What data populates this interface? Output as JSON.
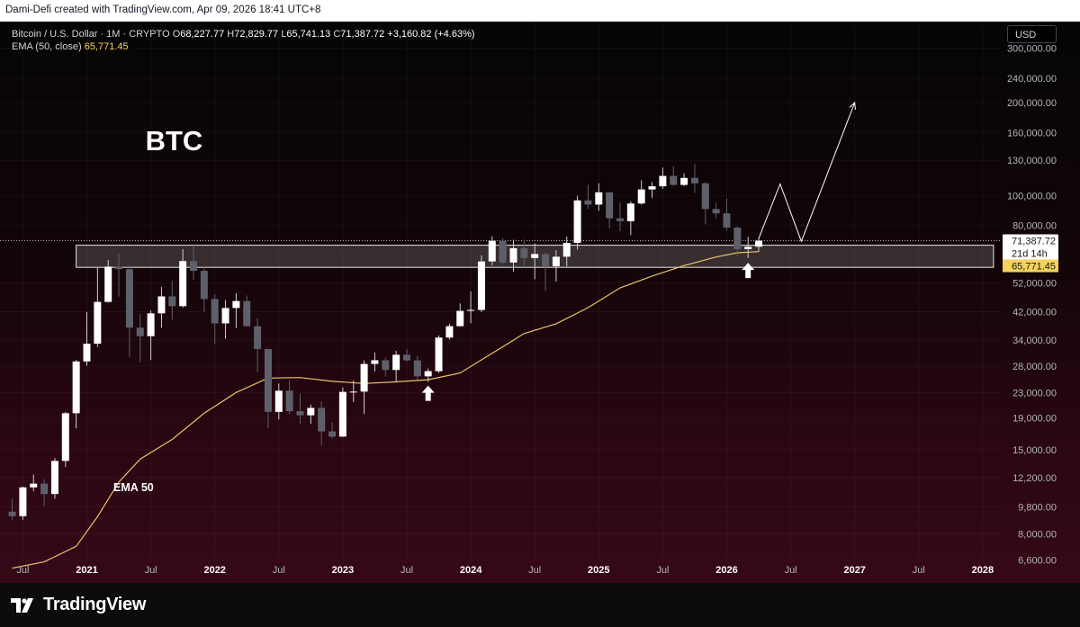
{
  "header": {
    "attribution": "Dami-Defi created with TradingView.com, Apr 09, 2026 18:41 UTC+8"
  },
  "legend": {
    "symbol": "Bitcoin / U.S. Dollar · 1M · CRYPTO",
    "o_label": "O",
    "o_value": "68,227.77",
    "h_label": "H",
    "h_value": "72,829.77",
    "l_label": "L",
    "l_value": "65,741.13",
    "c_label": "C",
    "c_value": "71,387.72",
    "change": "+3,160.82 (+4.63%)",
    "ema_label": "EMA (50, close)",
    "ema_value": "65,771.45"
  },
  "currency_button": "USD",
  "footer": {
    "brand": "TradingView"
  },
  "colors": {
    "candle_up": "#ffffff",
    "candle_down": "#5d606b",
    "ema": "#e9c46a",
    "price_label_bg": "#ffffff",
    "ema_label_bg": "#f5d35e"
  },
  "chart_data": {
    "type": "candlestick",
    "title": "BTC",
    "interval": "1M",
    "y_scale": "log",
    "ylim": [
      5800,
      330000
    ],
    "y_ticks": [
      {
        "value": 300000,
        "label": "300,000.00"
      },
      {
        "value": 240000,
        "label": "240,000.00"
      },
      {
        "value": 200000,
        "label": "200,000.00"
      },
      {
        "value": 160000,
        "label": "160,000.00"
      },
      {
        "value": 130000,
        "label": "130,000.00"
      },
      {
        "value": 100000,
        "label": "100,000.00"
      },
      {
        "value": 80000,
        "label": "80,000.00"
      },
      {
        "value": 52000,
        "label": "52,000.00"
      },
      {
        "value": 42000,
        "label": "42,000.00"
      },
      {
        "value": 34000,
        "label": "34,000.00"
      },
      {
        "value": 28000,
        "label": "28,000.00"
      },
      {
        "value": 23000,
        "label": "23,000.00"
      },
      {
        "value": 19000,
        "label": "19,000.00"
      },
      {
        "value": 15000,
        "label": "15,000.00"
      },
      {
        "value": 12200,
        "label": "12,200.00"
      },
      {
        "value": 9800,
        "label": "9,800.00"
      },
      {
        "value": 8000,
        "label": "8,000.00"
      },
      {
        "value": 6600,
        "label": "6,600.00"
      }
    ],
    "x_ticks": [
      {
        "date": "2020-07",
        "label": "Jul",
        "bold": false
      },
      {
        "date": "2021-01",
        "label": "2021",
        "bold": true
      },
      {
        "date": "2021-07",
        "label": "Jul",
        "bold": false
      },
      {
        "date": "2022-01",
        "label": "2022",
        "bold": true
      },
      {
        "date": "2022-07",
        "label": "Jul",
        "bold": false
      },
      {
        "date": "2023-01",
        "label": "2023",
        "bold": true
      },
      {
        "date": "2023-07",
        "label": "Jul",
        "bold": false
      },
      {
        "date": "2024-01",
        "label": "2024",
        "bold": true
      },
      {
        "date": "2024-07",
        "label": "Jul",
        "bold": false
      },
      {
        "date": "2025-01",
        "label": "2025",
        "bold": true
      },
      {
        "date": "2025-07",
        "label": "Jul",
        "bold": false
      },
      {
        "date": "2026-01",
        "label": "2026",
        "bold": true
      },
      {
        "date": "2026-07",
        "label": "Jul",
        "bold": false
      },
      {
        "date": "2027-01",
        "label": "2027",
        "bold": true
      },
      {
        "date": "2027-07",
        "label": "Jul",
        "bold": false
      },
      {
        "date": "2028-01",
        "label": "2028",
        "bold": true
      }
    ],
    "candles": [
      {
        "d": "2020-06",
        "o": 9450,
        "h": 10400,
        "l": 8900,
        "c": 9140
      },
      {
        "d": "2020-07",
        "o": 9140,
        "h": 11400,
        "l": 8900,
        "c": 11330
      },
      {
        "d": "2020-08",
        "o": 11330,
        "h": 12470,
        "l": 11000,
        "c": 11650
      },
      {
        "d": "2020-09",
        "o": 11650,
        "h": 12050,
        "l": 9850,
        "c": 10780
      },
      {
        "d": "2020-10",
        "o": 10780,
        "h": 14100,
        "l": 10400,
        "c": 13800
      },
      {
        "d": "2020-11",
        "o": 13800,
        "h": 19900,
        "l": 13200,
        "c": 19700
      },
      {
        "d": "2020-12",
        "o": 19700,
        "h": 29300,
        "l": 17600,
        "c": 28990
      },
      {
        "d": "2021-01",
        "o": 28990,
        "h": 41900,
        "l": 28100,
        "c": 33100
      },
      {
        "d": "2021-02",
        "o": 33100,
        "h": 58300,
        "l": 32300,
        "c": 45200
      },
      {
        "d": "2021-03",
        "o": 45200,
        "h": 61800,
        "l": 45000,
        "c": 58800
      },
      {
        "d": "2021-04",
        "o": 58800,
        "h": 64800,
        "l": 47000,
        "c": 57700
      },
      {
        "d": "2021-05",
        "o": 57700,
        "h": 59500,
        "l": 30000,
        "c": 37300
      },
      {
        "d": "2021-06",
        "o": 37300,
        "h": 41300,
        "l": 28800,
        "c": 35000
      },
      {
        "d": "2021-07",
        "o": 35000,
        "h": 42400,
        "l": 29300,
        "c": 41500
      },
      {
        "d": "2021-08",
        "o": 41500,
        "h": 50500,
        "l": 37300,
        "c": 47100
      },
      {
        "d": "2021-09",
        "o": 47100,
        "h": 52900,
        "l": 39600,
        "c": 43800
      },
      {
        "d": "2021-10",
        "o": 43800,
        "h": 67000,
        "l": 43300,
        "c": 61300
      },
      {
        "d": "2021-11",
        "o": 61300,
        "h": 69000,
        "l": 53300,
        "c": 57000
      },
      {
        "d": "2021-12",
        "o": 57000,
        "h": 59100,
        "l": 42000,
        "c": 46200
      },
      {
        "d": "2022-01",
        "o": 46200,
        "h": 47900,
        "l": 33000,
        "c": 38500
      },
      {
        "d": "2022-02",
        "o": 38500,
        "h": 45800,
        "l": 34300,
        "c": 43200
      },
      {
        "d": "2022-03",
        "o": 43200,
        "h": 48200,
        "l": 37200,
        "c": 45500
      },
      {
        "d": "2022-04",
        "o": 45500,
        "h": 47400,
        "l": 37700,
        "c": 37700
      },
      {
        "d": "2022-05",
        "o": 37700,
        "h": 40000,
        "l": 26700,
        "c": 31800
      },
      {
        "d": "2022-06",
        "o": 31800,
        "h": 31900,
        "l": 17600,
        "c": 19900
      },
      {
        "d": "2022-07",
        "o": 19900,
        "h": 24600,
        "l": 18800,
        "c": 23300
      },
      {
        "d": "2022-08",
        "o": 23300,
        "h": 25200,
        "l": 19600,
        "c": 20000
      },
      {
        "d": "2022-09",
        "o": 20000,
        "h": 22800,
        "l": 18200,
        "c": 19400
      },
      {
        "d": "2022-10",
        "o": 19400,
        "h": 21000,
        "l": 18200,
        "c": 20500
      },
      {
        "d": "2022-11",
        "o": 20500,
        "h": 21500,
        "l": 15500,
        "c": 17200
      },
      {
        "d": "2022-12",
        "o": 17200,
        "h": 18400,
        "l": 16300,
        "c": 16550
      },
      {
        "d": "2023-01",
        "o": 16550,
        "h": 23900,
        "l": 16500,
        "c": 23100
      },
      {
        "d": "2023-02",
        "o": 23100,
        "h": 25200,
        "l": 21400,
        "c": 23150
      },
      {
        "d": "2023-03",
        "o": 23150,
        "h": 29200,
        "l": 19600,
        "c": 28450
      },
      {
        "d": "2023-04",
        "o": 28450,
        "h": 31000,
        "l": 26900,
        "c": 29250
      },
      {
        "d": "2023-05",
        "o": 29250,
        "h": 29800,
        "l": 25900,
        "c": 27200
      },
      {
        "d": "2023-06",
        "o": 27200,
        "h": 31400,
        "l": 24800,
        "c": 30470
      },
      {
        "d": "2023-07",
        "o": 30470,
        "h": 31800,
        "l": 28900,
        "c": 29230
      },
      {
        "d": "2023-08",
        "o": 29230,
        "h": 30200,
        "l": 25200,
        "c": 25940
      },
      {
        "d": "2023-09",
        "o": 25940,
        "h": 27500,
        "l": 24900,
        "c": 26960
      },
      {
        "d": "2023-10",
        "o": 26960,
        "h": 35200,
        "l": 26600,
        "c": 34640
      },
      {
        "d": "2023-11",
        "o": 34640,
        "h": 38400,
        "l": 34100,
        "c": 37720
      },
      {
        "d": "2023-12",
        "o": 37720,
        "h": 44700,
        "l": 37600,
        "c": 42280
      },
      {
        "d": "2024-01",
        "o": 42280,
        "h": 48900,
        "l": 38500,
        "c": 42580
      },
      {
        "d": "2024-02",
        "o": 42580,
        "h": 64000,
        "l": 41900,
        "c": 61130
      },
      {
        "d": "2024-03",
        "o": 61130,
        "h": 73800,
        "l": 59300,
        "c": 71330
      },
      {
        "d": "2024-04",
        "o": 71330,
        "h": 72800,
        "l": 59600,
        "c": 60640
      },
      {
        "d": "2024-05",
        "o": 60640,
        "h": 71900,
        "l": 56600,
        "c": 67490
      },
      {
        "d": "2024-06",
        "o": 67490,
        "h": 71900,
        "l": 58400,
        "c": 62680
      },
      {
        "d": "2024-07",
        "o": 62680,
        "h": 70000,
        "l": 53500,
        "c": 64620
      },
      {
        "d": "2024-08",
        "o": 64620,
        "h": 65100,
        "l": 49100,
        "c": 58970
      },
      {
        "d": "2024-09",
        "o": 58970,
        "h": 66500,
        "l": 52600,
        "c": 63330
      },
      {
        "d": "2024-10",
        "o": 63330,
        "h": 73600,
        "l": 58900,
        "c": 70220
      },
      {
        "d": "2024-11",
        "o": 70220,
        "h": 99800,
        "l": 66800,
        "c": 96400
      },
      {
        "d": "2024-12",
        "o": 96400,
        "h": 108300,
        "l": 90500,
        "c": 93430
      },
      {
        "d": "2025-01",
        "o": 93430,
        "h": 109600,
        "l": 89200,
        "c": 102400
      },
      {
        "d": "2025-02",
        "o": 102400,
        "h": 102800,
        "l": 78200,
        "c": 84350
      },
      {
        "d": "2025-03",
        "o": 84350,
        "h": 95000,
        "l": 76600,
        "c": 82550
      },
      {
        "d": "2025-04",
        "o": 82550,
        "h": 95800,
        "l": 74400,
        "c": 94200
      },
      {
        "d": "2025-05",
        "o": 94200,
        "h": 112000,
        "l": 93400,
        "c": 104600
      },
      {
        "d": "2025-06",
        "o": 104600,
        "h": 110500,
        "l": 98200,
        "c": 107100
      },
      {
        "d": "2025-07",
        "o": 107100,
        "h": 123200,
        "l": 105100,
        "c": 115700
      },
      {
        "d": "2025-08",
        "o": 115700,
        "h": 124500,
        "l": 107300,
        "c": 108200
      },
      {
        "d": "2025-09",
        "o": 108200,
        "h": 117900,
        "l": 107300,
        "c": 114000
      },
      {
        "d": "2025-10",
        "o": 114000,
        "h": 126200,
        "l": 102000,
        "c": 109500
      },
      {
        "d": "2025-11",
        "o": 109500,
        "h": 110600,
        "l": 80600,
        "c": 90400
      },
      {
        "d": "2025-12",
        "o": 90400,
        "h": 94600,
        "l": 84400,
        "c": 87500
      },
      {
        "d": "2026-01",
        "o": 87500,
        "h": 97900,
        "l": 77000,
        "c": 78700
      },
      {
        "d": "2026-02",
        "o": 78700,
        "h": 79500,
        "l": 63500,
        "c": 67000
      },
      {
        "d": "2026-03",
        "o": 67000,
        "h": 73500,
        "l": 62800,
        "c": 68227
      },
      {
        "d": "2026-04",
        "o": 68227.77,
        "h": 72829.77,
        "l": 65741.13,
        "c": 71387.72
      }
    ],
    "ema_series": {
      "name": "EMA 50",
      "points": [
        {
          "d": "2020-06",
          "v": 6200
        },
        {
          "d": "2020-09",
          "v": 6500
        },
        {
          "d": "2020-12",
          "v": 7300
        },
        {
          "d": "2021-02",
          "v": 9100
        },
        {
          "d": "2021-04",
          "v": 11800
        },
        {
          "d": "2021-06",
          "v": 14000
        },
        {
          "d": "2021-09",
          "v": 16200
        },
        {
          "d": "2021-12",
          "v": 19700
        },
        {
          "d": "2022-03",
          "v": 23000
        },
        {
          "d": "2022-06",
          "v": 25600
        },
        {
          "d": "2022-09",
          "v": 25700
        },
        {
          "d": "2022-12",
          "v": 25000
        },
        {
          "d": "2023-03",
          "v": 24600
        },
        {
          "d": "2023-06",
          "v": 24900
        },
        {
          "d": "2023-09",
          "v": 25300
        },
        {
          "d": "2023-12",
          "v": 26600
        },
        {
          "d": "2024-03",
          "v": 30800
        },
        {
          "d": "2024-06",
          "v": 35700
        },
        {
          "d": "2024-09",
          "v": 38400
        },
        {
          "d": "2024-12",
          "v": 43300
        },
        {
          "d": "2025-03",
          "v": 50200
        },
        {
          "d": "2025-06",
          "v": 54800
        },
        {
          "d": "2025-09",
          "v": 59300
        },
        {
          "d": "2025-12",
          "v": 63200
        },
        {
          "d": "2026-02",
          "v": 65200
        },
        {
          "d": "2026-04",
          "v": 65771.45
        }
      ]
    },
    "support_zone": {
      "from": "2020-12",
      "to": "2028-01",
      "low": 58500,
      "high": 69000
    },
    "current_price": {
      "value": 71387.72,
      "label": "71,387.72",
      "countdown": "21d 14h"
    },
    "ema_price_label": {
      "value": 65771.45,
      "label": "65,771.45"
    },
    "projection": [
      {
        "d": "2026-04",
        "v": 72500
      },
      {
        "d": "2026-06",
        "v": 109000
      },
      {
        "d": "2026-08",
        "v": 71000
      },
      {
        "d": "2027-01",
        "v": 200000
      }
    ],
    "markers": [
      {
        "d": "2023-09",
        "v": 22800,
        "kind": "arrow-up"
      },
      {
        "d": "2026-03",
        "v": 57000,
        "kind": "arrow-up"
      }
    ],
    "annotations": [
      {
        "text": "BTC",
        "d": "2021-07",
        "v": 140000
      },
      {
        "text": "EMA 50",
        "d": "2021-04",
        "v": 11000
      }
    ]
  }
}
